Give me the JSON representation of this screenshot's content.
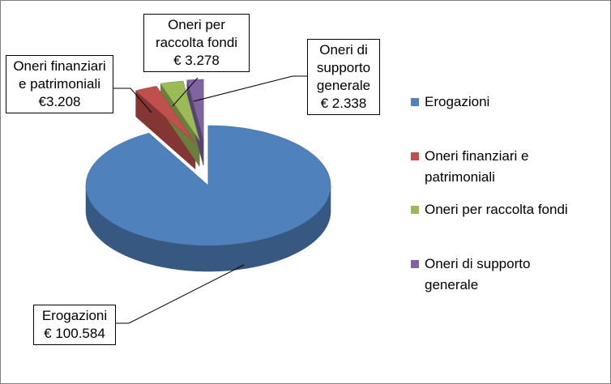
{
  "chart_data": {
    "type": "pie",
    "categories": [
      "Erogazioni",
      "Oneri finanziari e patrimoniali",
      "Oneri per raccolta fondi",
      "Oneri di supporto generale"
    ],
    "values": [
      100584,
      3208,
      3278,
      2338
    ],
    "value_labels": [
      "€ 100.584",
      "€3.208",
      "€ 3.278",
      "€ 2.338"
    ],
    "colors": [
      "#4f81bd",
      "#c0504d",
      "#9bbb59",
      "#8064a2"
    ],
    "legend": "right"
  }
}
